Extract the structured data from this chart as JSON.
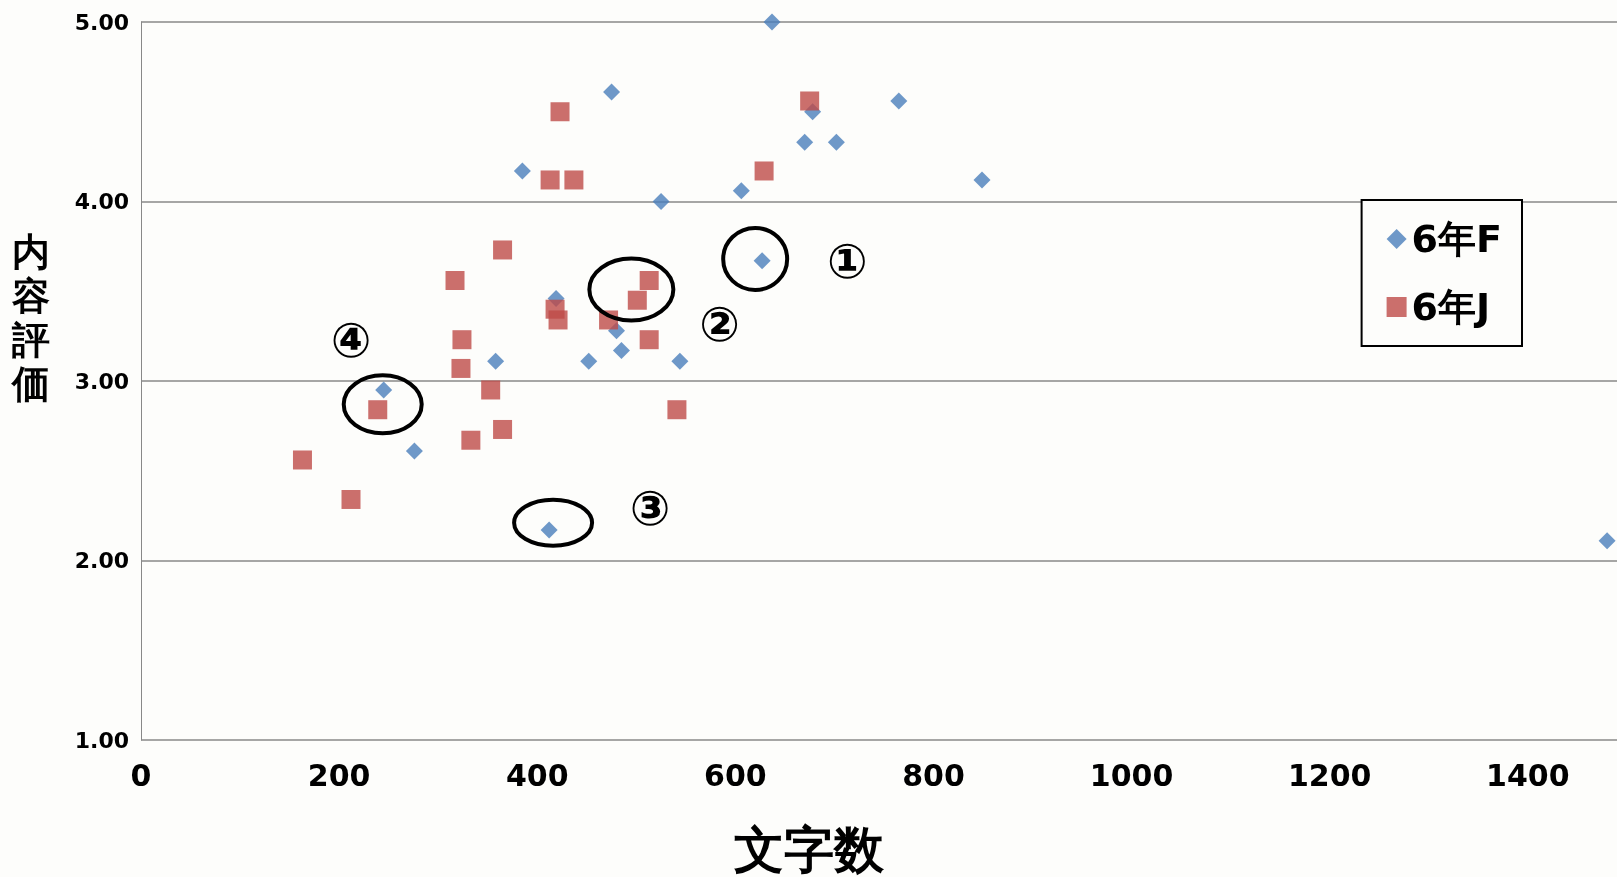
{
  "chart_data": {
    "type": "scatter",
    "xlabel": "文字数",
    "ylabel": "内容評価",
    "xlim": [
      0,
      1490
    ],
    "xticks": [
      0,
      200,
      400,
      600,
      800,
      1000,
      1200,
      1400
    ],
    "ylim": [
      1,
      5
    ],
    "yticks": [
      {
        "value": 1,
        "label": "1.00"
      },
      {
        "value": 2,
        "label": "2.00"
      },
      {
        "value": 3,
        "label": "3.00"
      },
      {
        "value": 4,
        "label": "4.00"
      },
      {
        "value": 5,
        "label": "5.00"
      }
    ],
    "grid": "y",
    "legend": "top right",
    "series": [
      {
        "name": "6年F",
        "color": "#4a7ebb",
        "marker": "diamond",
        "x": [
          637,
          475,
          385,
          678,
          765,
          670,
          702,
          606,
          525,
          849,
          627,
          419,
          480,
          485,
          452,
          544,
          358,
          245,
          276,
          412,
          1480
        ],
        "values": [
          5.0,
          4.61,
          4.17,
          4.5,
          4.56,
          4.33,
          4.33,
          4.06,
          4.0,
          4.12,
          3.67,
          3.46,
          3.28,
          3.17,
          3.11,
          3.11,
          3.11,
          2.95,
          2.61,
          2.17,
          2.11
        ]
      },
      {
        "name": "6年J",
        "color": "#be4b48",
        "marker": "square",
        "x": [
          423,
          413,
          437,
          675,
          629,
          365,
          317,
          513,
          501,
          418,
          421,
          472,
          324,
          513,
          323,
          353,
          541,
          239,
          333,
          365,
          163,
          212
        ],
        "values": [
          4.5,
          4.12,
          4.12,
          4.56,
          4.17,
          3.73,
          3.56,
          3.56,
          3.45,
          3.4,
          3.34,
          3.34,
          3.23,
          3.23,
          3.07,
          2.95,
          2.84,
          2.84,
          2.67,
          2.73,
          2.56,
          2.34
        ]
      }
    ],
    "annotations": [
      "①",
      "②",
      "③",
      "④"
    ]
  }
}
